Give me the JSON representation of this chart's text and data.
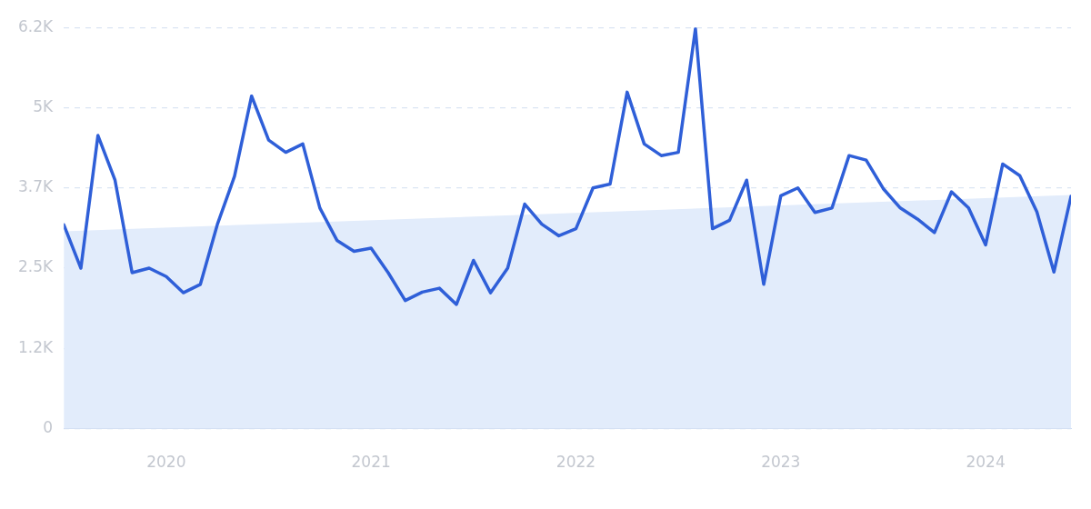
{
  "chart_data": {
    "type": "line",
    "x": [
      "2019-07",
      "2019-08",
      "2019-09",
      "2019-10",
      "2019-11",
      "2019-12",
      "2020-01",
      "2020-02",
      "2020-03",
      "2020-04",
      "2020-05",
      "2020-06",
      "2020-07",
      "2020-08",
      "2020-09",
      "2020-10",
      "2020-11",
      "2020-12",
      "2021-01",
      "2021-02",
      "2021-03",
      "2021-04",
      "2021-05",
      "2021-06",
      "2021-07",
      "2021-08",
      "2021-09",
      "2021-10",
      "2021-11",
      "2021-12",
      "2022-01",
      "2022-02",
      "2022-03",
      "2022-04",
      "2022-05",
      "2022-06",
      "2022-07",
      "2022-08",
      "2022-09",
      "2022-10",
      "2022-11",
      "2022-12",
      "2023-01",
      "2023-02",
      "2023-03",
      "2023-04",
      "2023-05",
      "2023-06",
      "2023-07",
      "2023-08",
      "2023-09",
      "2023-10",
      "2023-11",
      "2023-12",
      "2024-01",
      "2024-02",
      "2024-03",
      "2024-04",
      "2024-05",
      "2024-06"
    ],
    "series": [
      {
        "type": "area",
        "color": "#e2ecfb",
        "x": [
          "2019-07",
          "2024-06"
        ],
        "values": [
          3050,
          3610
        ]
      },
      {
        "color": "#2f5fd8",
        "values": [
          3150,
          2480,
          4530,
          3840,
          2410,
          2480,
          2350,
          2100,
          2230,
          3160,
          3900,
          5140,
          4460,
          4270,
          4400,
          3410,
          2910,
          2740,
          2790,
          2410,
          1980,
          2110,
          2170,
          1920,
          2600,
          2100,
          2480,
          3470,
          3160,
          2980,
          3090,
          3720,
          3780,
          5200,
          4400,
          4220,
          4270,
          6180,
          3090,
          3220,
          3840,
          2230,
          3600,
          3720,
          3340,
          3410,
          4220,
          4150,
          3710,
          3410,
          3240,
          3030,
          3660,
          3410,
          2840,
          4090,
          3910,
          3350,
          2420,
          3590
        ]
      }
    ],
    "xlim": [
      "2019-07",
      "2024-06"
    ],
    "xticks": [
      "2020",
      "2021",
      "2022",
      "2023",
      "2024"
    ],
    "ylim": [
      0,
      6200
    ],
    "yticks": [
      0,
      {
        "value": 1240,
        "label": "1.2K"
      },
      {
        "value": 2480,
        "label": "2.5K"
      },
      {
        "value": 3720,
        "label": "3.7K"
      },
      {
        "value": 4960,
        "label": "5K"
      },
      {
        "value": 6200,
        "label": "6.2K"
      }
    ],
    "grid": "y",
    "legend": false,
    "marker": "none",
    "line_style": "solid"
  }
}
